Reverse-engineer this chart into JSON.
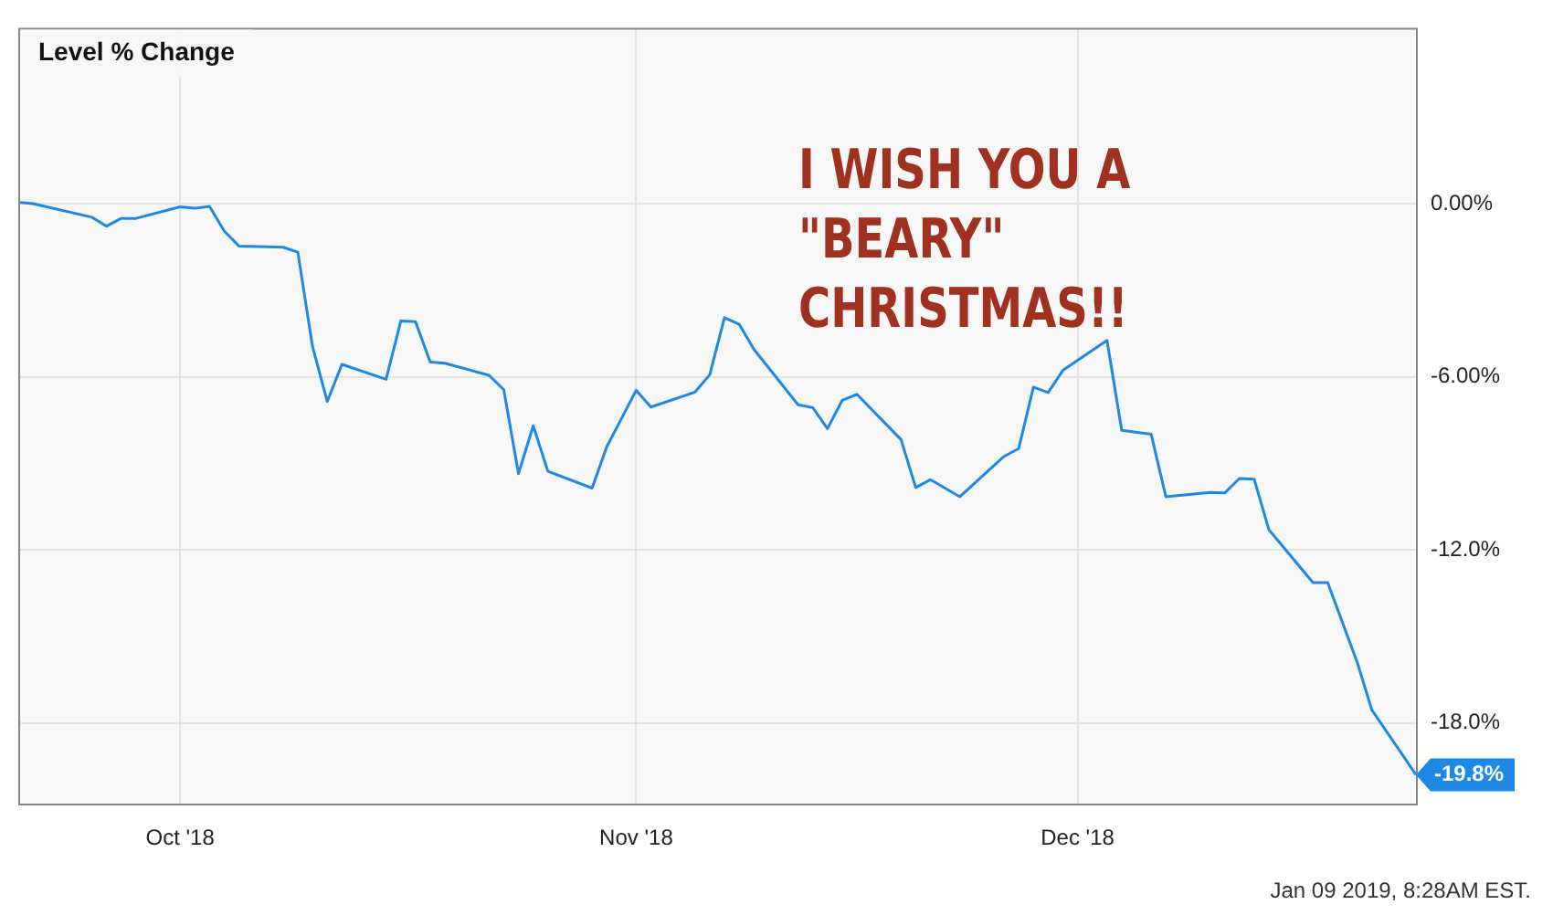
{
  "chart_data": {
    "type": "line",
    "title": "Level % Change",
    "x": [
      "2018-09-20",
      "2018-09-21",
      "2018-09-25",
      "2018-09-26",
      "2018-09-27",
      "2018-09-28",
      "2018-10-01",
      "2018-10-02",
      "2018-10-03",
      "2018-10-04",
      "2018-10-05",
      "2018-10-08",
      "2018-10-09",
      "2018-10-10",
      "2018-10-11",
      "2018-10-12",
      "2018-10-15",
      "2018-10-16",
      "2018-10-17",
      "2018-10-18",
      "2018-10-19",
      "2018-10-22",
      "2018-10-23",
      "2018-10-24",
      "2018-10-25",
      "2018-10-26",
      "2018-10-29",
      "2018-10-30",
      "2018-11-01",
      "2018-11-02",
      "2018-11-05",
      "2018-11-06",
      "2018-11-07",
      "2018-11-08",
      "2018-11-09",
      "2018-11-12",
      "2018-11-13",
      "2018-11-14",
      "2018-11-15",
      "2018-11-16",
      "2018-11-19",
      "2018-11-20",
      "2018-11-21",
      "2018-11-23",
      "2018-11-26",
      "2018-11-27",
      "2018-11-28",
      "2018-11-29",
      "2018-11-30",
      "2018-12-03",
      "2018-12-04",
      "2018-12-06",
      "2018-12-07",
      "2018-12-10",
      "2018-12-11",
      "2018-12-12",
      "2018-12-13",
      "2018-12-14",
      "2018-12-17",
      "2018-12-18",
      "2018-12-20",
      "2018-12-21",
      "2018-12-24"
    ],
    "series": [
      {
        "color": "#1e88e5",
        "values": [
          0.05,
          0.0,
          -0.47,
          -0.78,
          -0.51,
          -0.51,
          -0.11,
          -0.16,
          -0.09,
          -0.95,
          -1.47,
          -1.51,
          -1.68,
          -4.95,
          -6.86,
          -5.57,
          -6.09,
          -4.07,
          -4.09,
          -5.49,
          -5.53,
          -5.95,
          -6.45,
          -9.36,
          -7.7,
          -9.28,
          -9.86,
          -8.43,
          -6.47,
          -7.05,
          -6.53,
          -5.93,
          -3.95,
          -4.18,
          -5.05,
          -6.97,
          -7.07,
          -7.8,
          -6.82,
          -6.61,
          -8.18,
          -9.84,
          -9.57,
          -10.16,
          -8.76,
          -8.49,
          -6.36,
          -6.55,
          -5.78,
          -4.74,
          -7.86,
          -7.99,
          -10.16,
          -10.01,
          -10.03,
          -9.53,
          -9.55,
          -11.3,
          -13.14,
          -13.14,
          -15.89,
          -17.55,
          -19.8
        ]
      }
    ],
    "xlim": [
      "2018-09-20",
      "2018-12-24"
    ],
    "xticks": [
      {
        "value": "2018-10-01",
        "label": "Oct '18"
      },
      {
        "value": "2018-11-01",
        "label": "Nov '18"
      },
      {
        "value": "2018-12-01",
        "label": "Dec '18"
      }
    ],
    "ylim": [
      -20.8,
      6.1
    ],
    "yticks": [
      {
        "value": 0,
        "label": "0.00%"
      },
      {
        "value": -6,
        "label": "-6.00%"
      },
      {
        "value": -12,
        "label": "-12.0%"
      },
      {
        "value": -18,
        "label": "-18.0%"
      }
    ],
    "grid": true,
    "marker": "none",
    "line_style": "solid",
    "annotations": [
      {
        "text": "-19.8%",
        "x": "2018-12-24",
        "y": -19.8
      },
      "I WISH YOU A \"BEARY\" CHRISTMAS!!",
      "Jan 09 2019, 8:28AM EST."
    ]
  }
}
